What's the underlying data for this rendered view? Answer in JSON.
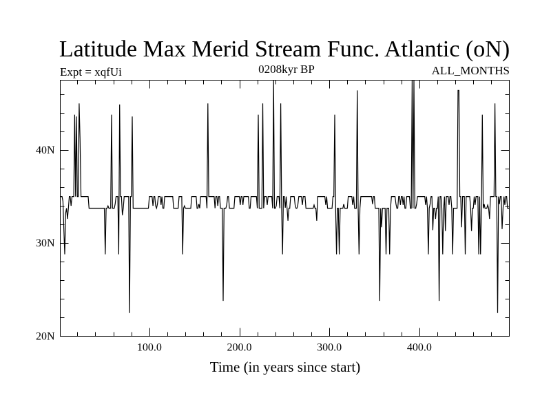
{
  "chart_data": {
    "type": "line",
    "title": "Latitude Max Merid Stream Func. Atlantic (oN)",
    "left_label": "Expt = xqfUi",
    "center_label": "0208kyr BP",
    "right_label": "ALL_MONTHS",
    "xlabel": "Time (in years since start)",
    "ylabel": "",
    "xlim": [
      1,
      500
    ],
    "ylim": [
      20,
      47.5
    ],
    "x_ticks": [
      100,
      200,
      300,
      400
    ],
    "x_tick_labels": [
      "100.0",
      "200.0",
      "300.0",
      "400.0"
    ],
    "y_ticks": [
      20,
      30,
      40
    ],
    "y_tick_labels": [
      "20N",
      "30N",
      "40N"
    ],
    "baseline": 33.75,
    "high_level": 35.0,
    "series": [
      {
        "high_segments": [
          [
            1,
            5
          ],
          [
            11,
            16
          ],
          [
            18,
            21
          ],
          [
            24,
            32
          ],
          [
            63,
            70
          ],
          [
            72,
            81
          ],
          [
            100,
            106
          ],
          [
            110,
            114
          ],
          [
            117,
            126
          ],
          [
            133,
            136
          ],
          [
            147,
            152
          ],
          [
            157,
            163
          ],
          [
            166,
            172
          ],
          [
            174,
            178
          ],
          [
            186,
            188
          ],
          [
            195,
            210
          ],
          [
            213,
            219
          ],
          [
            228,
            236
          ],
          [
            241,
            244
          ],
          [
            248,
            252
          ],
          [
            257,
            261
          ],
          [
            266,
            273
          ],
          [
            287,
            297
          ],
          [
            304,
            306
          ],
          [
            321,
            327
          ],
          [
            335,
            350
          ],
          [
            369,
            374
          ],
          [
            377,
            383
          ],
          [
            386,
            389
          ],
          [
            397,
            408
          ],
          [
            412,
            415
          ],
          [
            421,
            424
          ],
          [
            428,
            435
          ],
          [
            445,
            456
          ],
          [
            461,
            468
          ],
          [
            478,
            492
          ],
          [
            494,
            497
          ]
        ],
        "spikes": [
          [
            4,
            34.5
          ],
          [
            5,
            31.5
          ],
          [
            6,
            28.8
          ],
          [
            7,
            33.2
          ],
          [
            9,
            32.6
          ],
          [
            13,
            34.0
          ],
          [
            17,
            43.8
          ],
          [
            19,
            43.6
          ],
          [
            22,
            45.0
          ],
          [
            23,
            41.2
          ],
          [
            51,
            28.8
          ],
          [
            54,
            34.0
          ],
          [
            58,
            43.8
          ],
          [
            62,
            34.2
          ],
          [
            66,
            28.8
          ],
          [
            67,
            44.9
          ],
          [
            70,
            33.0
          ],
          [
            78,
            22.5
          ],
          [
            81,
            43.6
          ],
          [
            104,
            34.0
          ],
          [
            107,
            34.0
          ],
          [
            109,
            34.2
          ],
          [
            113,
            34.1
          ],
          [
            137,
            28.8
          ],
          [
            139,
            34.0
          ],
          [
            155,
            34.2
          ],
          [
            165,
            45.0
          ],
          [
            176,
            34.0
          ],
          [
            182,
            23.8
          ],
          [
            186,
            34.1
          ],
          [
            201,
            34.1
          ],
          [
            204,
            34.1
          ],
          [
            221,
            43.8
          ],
          [
            226,
            45.0
          ],
          [
            231,
            34.1
          ],
          [
            238,
            47.5
          ],
          [
            241,
            34.0
          ],
          [
            246,
            45.0
          ],
          [
            248,
            28.8
          ],
          [
            251,
            33.8
          ],
          [
            254,
            32.4
          ],
          [
            262,
            34.1
          ],
          [
            265,
            34.1
          ],
          [
            270,
            34.1
          ],
          [
            283,
            34.1
          ],
          [
            286,
            32.4
          ],
          [
            296,
            34.1
          ],
          [
            306,
            43.8
          ],
          [
            308,
            28.8
          ],
          [
            311,
            28.8
          ],
          [
            316,
            34.2
          ],
          [
            326,
            34.1
          ],
          [
            331,
            46.4
          ],
          [
            333,
            28.8
          ],
          [
            348,
            34.2
          ],
          [
            356,
            23.8
          ],
          [
            358,
            31.7
          ],
          [
            363,
            28.8
          ],
          [
            367,
            28.8
          ],
          [
            374,
            34.2
          ],
          [
            379,
            34.1
          ],
          [
            382,
            34.1
          ],
          [
            392,
            47.5
          ],
          [
            394,
            47.5
          ],
          [
            397,
            34.2
          ],
          [
            407,
            34.1
          ],
          [
            410,
            28.8
          ],
          [
            412,
            34.2
          ],
          [
            415,
            31.4
          ],
          [
            418,
            32.6
          ],
          [
            422,
            23.8
          ],
          [
            426,
            28.8
          ],
          [
            429,
            31.3
          ],
          [
            433,
            34.1
          ],
          [
            437,
            28.8
          ],
          [
            443,
            46.4
          ],
          [
            444,
            46.4
          ],
          [
            447,
            31.7
          ],
          [
            451,
            28.8
          ],
          [
            458,
            31.3
          ],
          [
            462,
            34.1
          ],
          [
            466,
            28.8
          ],
          [
            468,
            28.8
          ],
          [
            470,
            43.8
          ],
          [
            472,
            34.2
          ],
          [
            476,
            34.1
          ],
          [
            478,
            32.6
          ],
          [
            484,
            45.0
          ],
          [
            487,
            22.5
          ],
          [
            489,
            34.2
          ],
          [
            492,
            31.5
          ],
          [
            495,
            34.1
          ]
        ]
      }
    ],
    "grid": false
  }
}
